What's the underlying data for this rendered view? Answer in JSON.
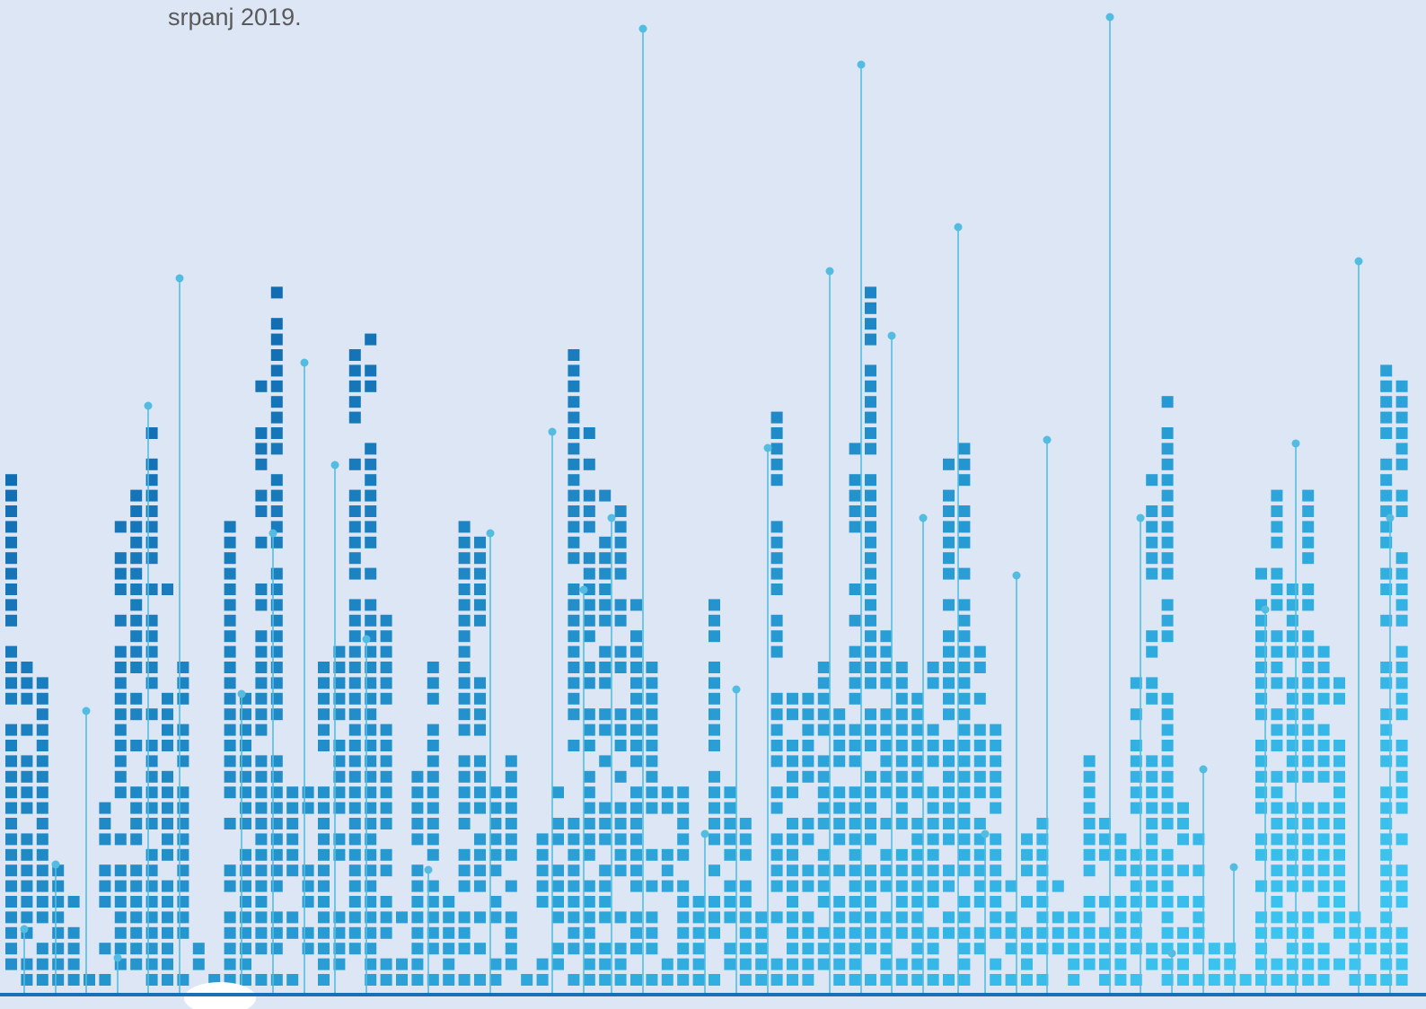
{
  "date": "srpanj 2019."
}
